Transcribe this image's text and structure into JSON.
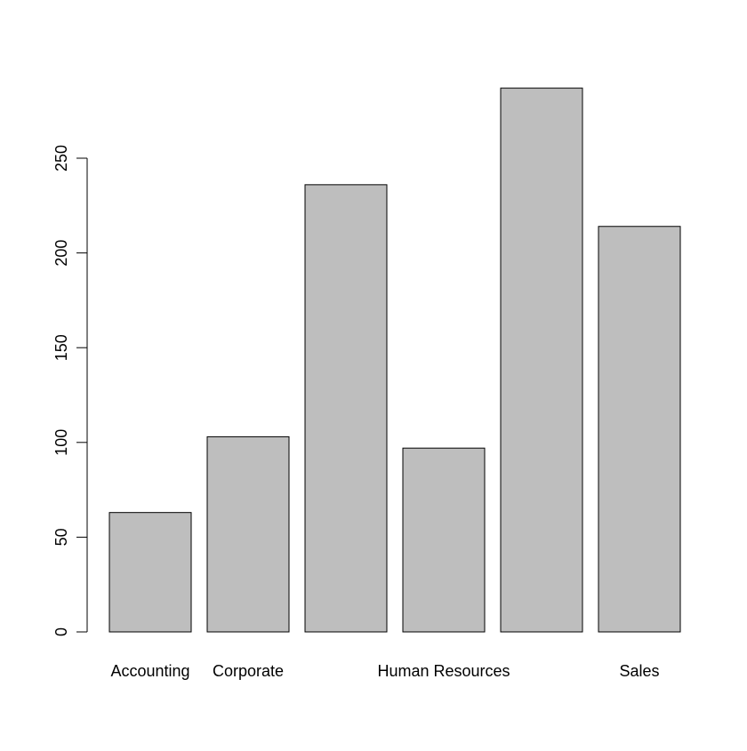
{
  "chart_data": {
    "type": "bar",
    "categories": [
      "Accounting",
      "Corporate",
      "",
      "Human Resources",
      "",
      "Sales"
    ],
    "values": [
      63,
      103,
      236,
      97,
      287,
      214
    ],
    "title": "",
    "xlabel": "",
    "ylabel": "",
    "ylim": [
      0,
      287
    ],
    "yticks": [
      0,
      50,
      100,
      150,
      200,
      250
    ],
    "grid": false,
    "bar_fill": "#bebebe",
    "bar_stroke": "#000000"
  }
}
